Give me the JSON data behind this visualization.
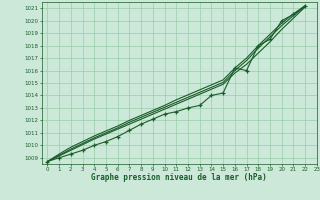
{
  "title": "Graphe pression niveau de la mer (hPa)",
  "xlim": [
    -0.5,
    23
  ],
  "ylim": [
    1008.5,
    1021.5
  ],
  "yticks": [
    1009,
    1010,
    1011,
    1012,
    1013,
    1014,
    1015,
    1016,
    1017,
    1018,
    1019,
    1020,
    1021
  ],
  "xticks": [
    0,
    1,
    2,
    3,
    4,
    5,
    6,
    7,
    8,
    9,
    10,
    11,
    12,
    13,
    14,
    15,
    16,
    17,
    18,
    19,
    20,
    21,
    22,
    23
  ],
  "background_color": "#cce8d8",
  "grid_color": "#99ccaa",
  "line_color": "#1a5c2a",
  "data_line": [
    1008.7,
    1009.0,
    1009.3,
    1009.6,
    1010.0,
    1010.3,
    1010.7,
    1011.2,
    1011.7,
    1012.1,
    1012.5,
    1012.7,
    1013.0,
    1013.2,
    1014.0,
    1014.2,
    1016.2,
    1016.0,
    1018.0,
    1018.5,
    1020.0,
    1020.5,
    1021.2
  ],
  "smooth_line1": [
    1008.7,
    1009.15,
    1009.6,
    1010.05,
    1010.5,
    1010.9,
    1011.3,
    1011.7,
    1012.1,
    1012.5,
    1012.9,
    1013.3,
    1013.7,
    1014.1,
    1014.5,
    1014.9,
    1015.8,
    1016.5,
    1017.4,
    1018.3,
    1019.3,
    1020.2,
    1021.1
  ],
  "smooth_line2": [
    1008.7,
    1009.2,
    1009.7,
    1010.15,
    1010.6,
    1011.0,
    1011.4,
    1011.85,
    1012.25,
    1012.65,
    1013.05,
    1013.45,
    1013.85,
    1014.25,
    1014.65,
    1015.05,
    1016.0,
    1016.8,
    1017.8,
    1018.7,
    1019.6,
    1020.4,
    1021.15
  ],
  "smooth_line3": [
    1008.7,
    1009.3,
    1009.85,
    1010.3,
    1010.75,
    1011.15,
    1011.55,
    1012.0,
    1012.4,
    1012.8,
    1013.2,
    1013.65,
    1014.05,
    1014.45,
    1014.85,
    1015.25,
    1016.2,
    1017.0,
    1018.0,
    1018.9,
    1019.8,
    1020.55,
    1021.2
  ]
}
